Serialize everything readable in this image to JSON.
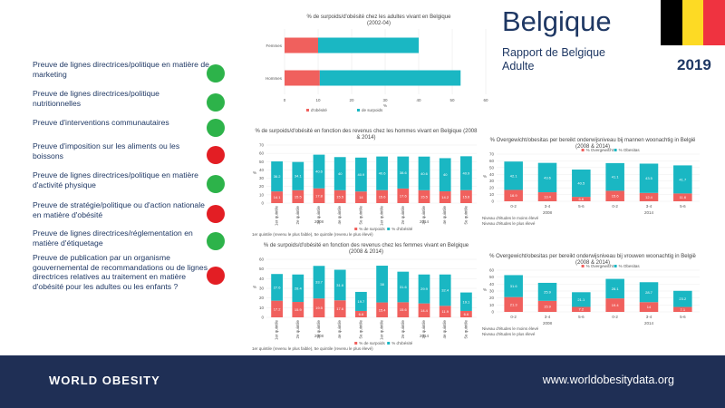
{
  "header": {
    "country": "Belgique",
    "subtitle_line1": "Rapport de Belgique",
    "subtitle_line2": "Adulte",
    "year": "2019",
    "flag_colors": [
      "#000000",
      "#FDDA24",
      "#EF3340"
    ]
  },
  "indicators": [
    {
      "label": "Preuve de lignes directrices/politique  en matière de marketing",
      "status": "green"
    },
    {
      "label": "Preuve de lignes directrices/politique nutritionnelles",
      "status": "green"
    },
    {
      "label": "Preuve d'interventions communautaires",
      "status": "green"
    },
    {
      "label": "Preuve d'imposition  sur les aliments ou les boissons",
      "status": "red"
    },
    {
      "label": "Preuve de lignes directrices/politique  en matière d'activité physique",
      "status": "green"
    },
    {
      "label": "Preuve de stratégie/politique ou d'action nationale en matière d'obésité",
      "status": "red"
    },
    {
      "label": "Preuve de lignes directrices/réglementation en matière d'étiquetage",
      "status": "green"
    },
    {
      "label": "Preuve de publication par un organisme gouvernemental de recommandations  ou de lignes directrices relatives au traitement en matière d'obésité pour les adultes ou les enfants ?",
      "status": "red"
    }
  ],
  "status_colors": {
    "green": "#2db34a",
    "red": "#e31e24"
  },
  "series_colors": {
    "obesity": "#f0605d",
    "overweight": "#1ab7c3"
  },
  "footer": {
    "logo": "WORLD OBESITY",
    "url": "www.worldobesitydata.org"
  },
  "chart_data": [
    {
      "id": "c1",
      "type": "bar",
      "orientation": "horizontal",
      "stacked": true,
      "title_line1": "% de surpoids/d'obésité chez les adultes vivant en Belgique",
      "title_line2": "(2002-04)",
      "categories": [
        "Femmes",
        "Hommes"
      ],
      "series": [
        {
          "name": "d'obésité",
          "values": [
            10,
            10.5
          ]
        },
        {
          "name": "de surpoids",
          "values": [
            30,
            42
          ]
        }
      ],
      "xlim": [
        0,
        60
      ],
      "xticks": [
        "0",
        "10",
        "20",
        "30",
        "40",
        "50",
        "60"
      ],
      "xlabel": "%"
    },
    {
      "id": "c2",
      "type": "bar",
      "stacked": true,
      "title_line1": "% de surpoids/d'obésité en fonction des revenus chez les hommes vivant en Belgique (2008",
      "title_line2": "& 2014)",
      "ylabel": "%",
      "ylim": [
        0,
        70
      ],
      "yticks": [
        "0",
        "10",
        "20",
        "30",
        "40",
        "50",
        "60",
        "70"
      ],
      "categories": [
        "1er quintile",
        "2e quintile",
        "3e quintile",
        "4e quintile",
        "5e quintile",
        "1er quintile",
        "2e quintile",
        "3e quintile",
        "4e quintile",
        "5e quintile"
      ],
      "groups": [
        {
          "label": "2008",
          "count": 5
        },
        {
          "label": "2014",
          "count": 5
        }
      ],
      "series": [
        {
          "name": "% de surpoids",
          "values": [
            14.1,
            15.5,
            17.8,
            15.5,
            14,
            15.6,
            17.6,
            15.5,
            14.2,
            15.6
          ]
        },
        {
          "name": "% d'obésité",
          "values": [
            36.2,
            34.1,
            40.6,
            40,
            40.9,
            40.6,
            38.6,
            40.6,
            40,
            40.9
          ]
        }
      ],
      "note": "1er quintile (revenu le plus faible), 5e quintile (revenu le plus élevé)"
    },
    {
      "id": "c3",
      "type": "bar",
      "stacked": true,
      "title_line1": "% Overgewicht/obesitas per bereikt onderwijsniveau bij mannen woonachtig in België",
      "title_line2": "(2008 & 2014)",
      "ylabel": "%",
      "ylim": [
        0,
        70
      ],
      "yticks": [
        "0",
        "10",
        "20",
        "30",
        "40",
        "50",
        "60",
        "70"
      ],
      "categories": [
        "0-2",
        "3-4",
        "5-6",
        "0-2",
        "3-4",
        "5-6"
      ],
      "groups": [
        {
          "label": "2008",
          "count": 3
        },
        {
          "label": "2014",
          "count": 3
        }
      ],
      "series": [
        {
          "name": "% Overgewicht",
          "values": [
            16.9,
            13.4,
            6.6,
            15.6,
            12.4,
            11.6
          ]
        },
        {
          "name": "% Obesitas",
          "values": [
            42.1,
            43.6,
            40.5,
            41.1,
            43.5,
            41.7
          ]
        }
      ],
      "legend_note_line1": "Niveau d'études le moins élevé",
      "legend_note_line2": "Niveau d'études le plus élevé"
    },
    {
      "id": "c4",
      "type": "bar",
      "stacked": true,
      "title_line1": "% de surpoids/d'obésité en fonction des revenus chez les femmes vivant en Belgique",
      "title_line2": "(2008 & 2014)",
      "ylabel": "%",
      "ylim": [
        0,
        60
      ],
      "yticks": [
        "0",
        "10",
        "20",
        "30",
        "40",
        "50",
        "60"
      ],
      "categories": [
        "1er quintile",
        "2e quintile",
        "3e quintile",
        "4e quintile",
        "5e quintile",
        "1er quintile",
        "2e quintile",
        "3e quintile",
        "4e quintile",
        "5e quintile"
      ],
      "groups": [
        {
          "label": "2008",
          "count": 5
        },
        {
          "label": "2014",
          "count": 5
        }
      ],
      "series": [
        {
          "name": "% de surpoids",
          "values": [
            17.2,
            15.9,
            19.5,
            17.6,
            6.6,
            15.4,
            15.6,
            14.4,
            11.9,
            6.6
          ]
        },
        {
          "name": "% d'obésité",
          "values": [
            27.6,
            28.4,
            33.7,
            31.6,
            19.7,
            38,
            31.6,
            29.9,
            32.4,
            19.1
          ]
        }
      ],
      "note": "1er quintile (revenu le plus faible), 5e quintile (revenu le plus élevé)"
    },
    {
      "id": "c5",
      "type": "bar",
      "stacked": true,
      "title_line1": "% Overgewicht/obesitas per bereikt onderwijsniveau bij vrouwen woonachtig in België",
      "title_line2": "(2008 & 2014)",
      "ylabel": "%",
      "ylim": [
        0,
        60
      ],
      "yticks": [
        "0",
        "10",
        "20",
        "30",
        "40",
        "50",
        "60"
      ],
      "categories": [
        "0-2",
        "3-4",
        "5-6",
        "0-2",
        "3-4",
        "5-6"
      ],
      "groups": [
        {
          "label": "2008",
          "count": 3
        },
        {
          "label": "2014",
          "count": 3
        }
      ],
      "series": [
        {
          "name": "% Overgewicht",
          "values": [
            21.3,
            15.9,
            7.2,
            19.4,
            14,
            7.1
          ]
        },
        {
          "name": "% Obesitas",
          "values": [
            31.6,
            25.9,
            21.1,
            28.1,
            28.7,
            23.2
          ]
        }
      ],
      "legend_note_line1": "Niveau d'études le moins élevé",
      "legend_note_line2": "Niveau d'études le plus élevé"
    }
  ]
}
